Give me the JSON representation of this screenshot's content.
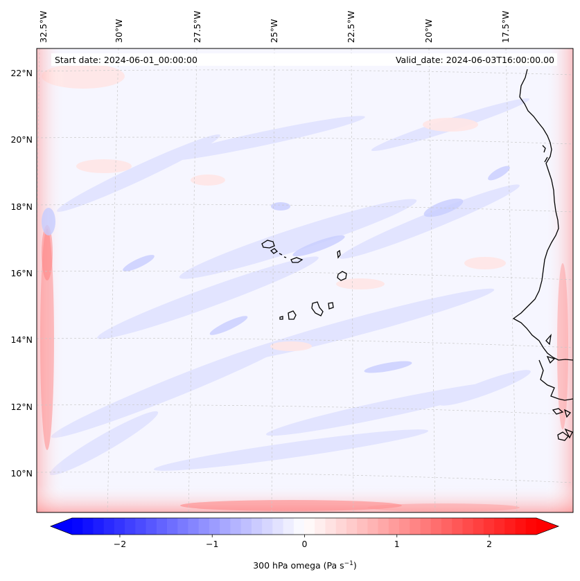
{
  "map": {
    "start_date": "Start date: 2024-06-01_00:00:00",
    "valid_date": "Valid_date: 2024-06-03T16:00:00.00",
    "lon_ticks": [
      "32.5°W",
      "30°W",
      "27.5°W",
      "25°W",
      "22.5°W",
      "20°W",
      "17.5°W"
    ],
    "lat_ticks": [
      "22°N",
      "20°N",
      "18°N",
      "16°N",
      "14°N",
      "12°N",
      "10°N"
    ],
    "coastline_color": "#000000",
    "gridline_color": "#c8c8c8",
    "field": "omega (vertical velocity) shading: mostly weak blue (ascent) over the ocean, red bands along domain boundaries"
  },
  "colorbar": {
    "label_prefix": "300 hPa omega (Pa s",
    "label_exp": "−1",
    "label_suffix": ")",
    "ticks": [
      "−2",
      "−1",
      "0",
      "1",
      "2"
    ],
    "range": [
      -2.75,
      2.75
    ],
    "tick_values": [
      -2,
      -1,
      0,
      1,
      2
    ],
    "cmap": "bwr",
    "neg_color": "#0000ff",
    "mid_color": "#ffffff",
    "pos_color": "#ff0000"
  }
}
